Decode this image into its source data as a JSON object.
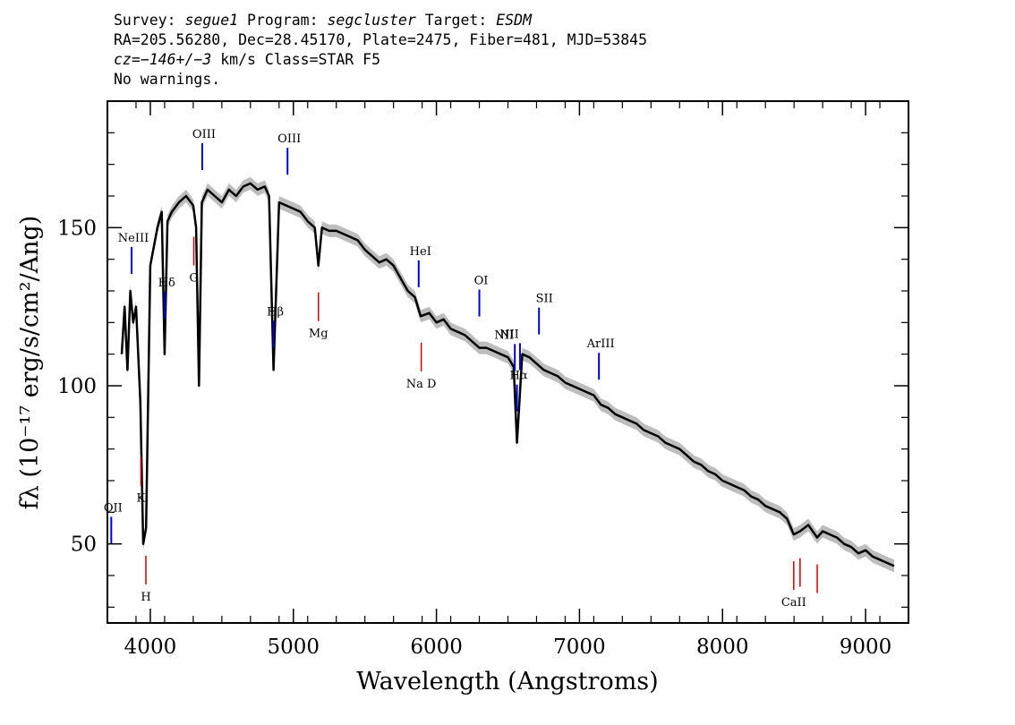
{
  "header": {
    "line1": {
      "survey_label": "Survey:",
      "survey": "segue1",
      "program_label": "Program:",
      "program": "segcluster",
      "target_label": "Target:",
      "target": "ESDM"
    },
    "line2": "RA=205.56280, Dec=28.45170, Plate=2475, Fiber=481, MJD=53845",
    "line3": {
      "cz_label": "cz=",
      "cz_value": "−146+/−3",
      "rest": " km/s Class=STAR F5"
    },
    "line4": "No warnings."
  },
  "chart_data": {
    "type": "line",
    "xlabel": "Wavelength (Angstroms)",
    "ylabel": "fλ (10⁻¹⁷ erg/s/cm²/Ang)",
    "xlim": [
      3700,
      9300
    ],
    "ylim": [
      25,
      190
    ],
    "x_ticks": [
      4000,
      5000,
      6000,
      7000,
      8000,
      9000
    ],
    "y_ticks": [
      50,
      100,
      150
    ],
    "grid": false,
    "legend": "none",
    "series": [
      {
        "x": [
          3800,
          3820,
          3840,
          3860,
          3880,
          3900,
          3930,
          3950,
          3970,
          4000,
          4050,
          4080,
          4100,
          4120,
          4150,
          4200,
          4250,
          4300,
          4320,
          4340,
          4360,
          4400,
          4450,
          4500,
          4550,
          4600,
          4650,
          4700,
          4750,
          4800,
          4830,
          4861,
          4900,
          4950,
          5000,
          5050,
          5100,
          5150,
          5175,
          5200,
          5250,
          5300,
          5350,
          5400,
          5450,
          5500,
          5550,
          5600,
          5650,
          5700,
          5750,
          5800,
          5850,
          5890,
          5950,
          6000,
          6050,
          6100,
          6150,
          6200,
          6250,
          6300,
          6350,
          6400,
          6450,
          6500,
          6540,
          6563,
          6600,
          6650,
          6700,
          6750,
          6800,
          6850,
          6900,
          6950,
          7000,
          7050,
          7100,
          7150,
          7200,
          7250,
          7300,
          7350,
          7400,
          7450,
          7500,
          7550,
          7600,
          7650,
          7700,
          7750,
          7800,
          7850,
          7900,
          7950,
          8000,
          8050,
          8100,
          8150,
          8200,
          8250,
          8300,
          8350,
          8400,
          8450,
          8498,
          8542,
          8600,
          8662,
          8700,
          8750,
          8800,
          8850,
          8900,
          8950,
          9000,
          9050,
          9100,
          9150,
          9200
        ],
        "values": [
          110,
          125,
          105,
          130,
          120,
          125,
          95,
          50,
          55,
          138,
          150,
          155,
          110,
          152,
          155,
          158,
          160,
          157,
          150,
          100,
          158,
          162,
          160,
          158,
          162,
          160,
          163,
          164,
          162,
          163,
          160,
          105,
          158,
          157,
          156,
          155,
          152,
          150,
          138,
          150,
          149,
          149,
          148,
          147,
          146,
          143,
          141,
          139,
          140,
          138,
          134,
          130,
          128,
          122,
          123,
          120,
          121,
          118,
          117,
          116,
          114,
          112,
          112,
          111,
          110,
          109,
          106,
          82,
          110,
          109,
          107,
          105,
          104,
          103,
          101,
          100,
          99,
          98,
          97,
          94,
          93,
          91,
          90,
          89,
          88,
          86,
          85,
          84,
          82,
          81,
          80,
          78,
          76,
          75,
          73,
          72,
          70,
          69,
          68,
          67,
          65,
          64,
          62,
          61,
          60,
          58,
          53,
          54,
          56,
          52,
          54,
          53,
          52,
          50,
          49,
          47,
          48,
          46,
          45,
          44,
          43
        ],
        "color": "#000000",
        "error_band_color": "#bdbdbd"
      }
    ],
    "emission_lines": [
      {
        "label": "OII",
        "x": 3727,
        "color": "#0000cc"
      },
      {
        "label": "NeIII",
        "x": 3869,
        "color": "#0000cc"
      },
      {
        "label": "Hδ",
        "x": 4102,
        "color": "#0000cc"
      },
      {
        "label": "OIII",
        "x": 4363,
        "color": "#0000cc"
      },
      {
        "label": "Hβ",
        "x": 4861,
        "color": "#0000cc"
      },
      {
        "label": "OIII",
        "x": 4959,
        "color": "#0000cc"
      },
      {
        "label": "HeI",
        "x": 5876,
        "color": "#0000cc"
      },
      {
        "label": "OI",
        "x": 6300,
        "color": "#0000cc"
      },
      {
        "label": "NII",
        "x": 6548,
        "color": "#0000cc"
      },
      {
        "label": "Hα",
        "x": 6563,
        "color": "#0000cc"
      },
      {
        "label": "NII",
        "x": 6584,
        "color": "#0000cc"
      },
      {
        "label": "SII",
        "x": 6717,
        "color": "#0000cc"
      },
      {
        "label": "ArIII",
        "x": 7136,
        "color": "#0000cc"
      }
    ],
    "absorption_lines": [
      {
        "label": "K",
        "x": 3934,
        "color": "#cc0000"
      },
      {
        "label": "H",
        "x": 3969,
        "color": "#cc0000"
      },
      {
        "label": "G",
        "x": 4304,
        "color": "#cc0000"
      },
      {
        "label": "Mg",
        "x": 5175,
        "color": "#cc0000"
      },
      {
        "label": "Na D",
        "x": 5894,
        "color": "#cc0000"
      },
      {
        "label": "CaII",
        "x": 8498,
        "color": "#cc0000"
      },
      {
        "label": "CaII",
        "x": 8542,
        "color": "#cc0000"
      },
      {
        "label": "CaII",
        "x": 8662,
        "color": "#cc0000"
      }
    ]
  }
}
